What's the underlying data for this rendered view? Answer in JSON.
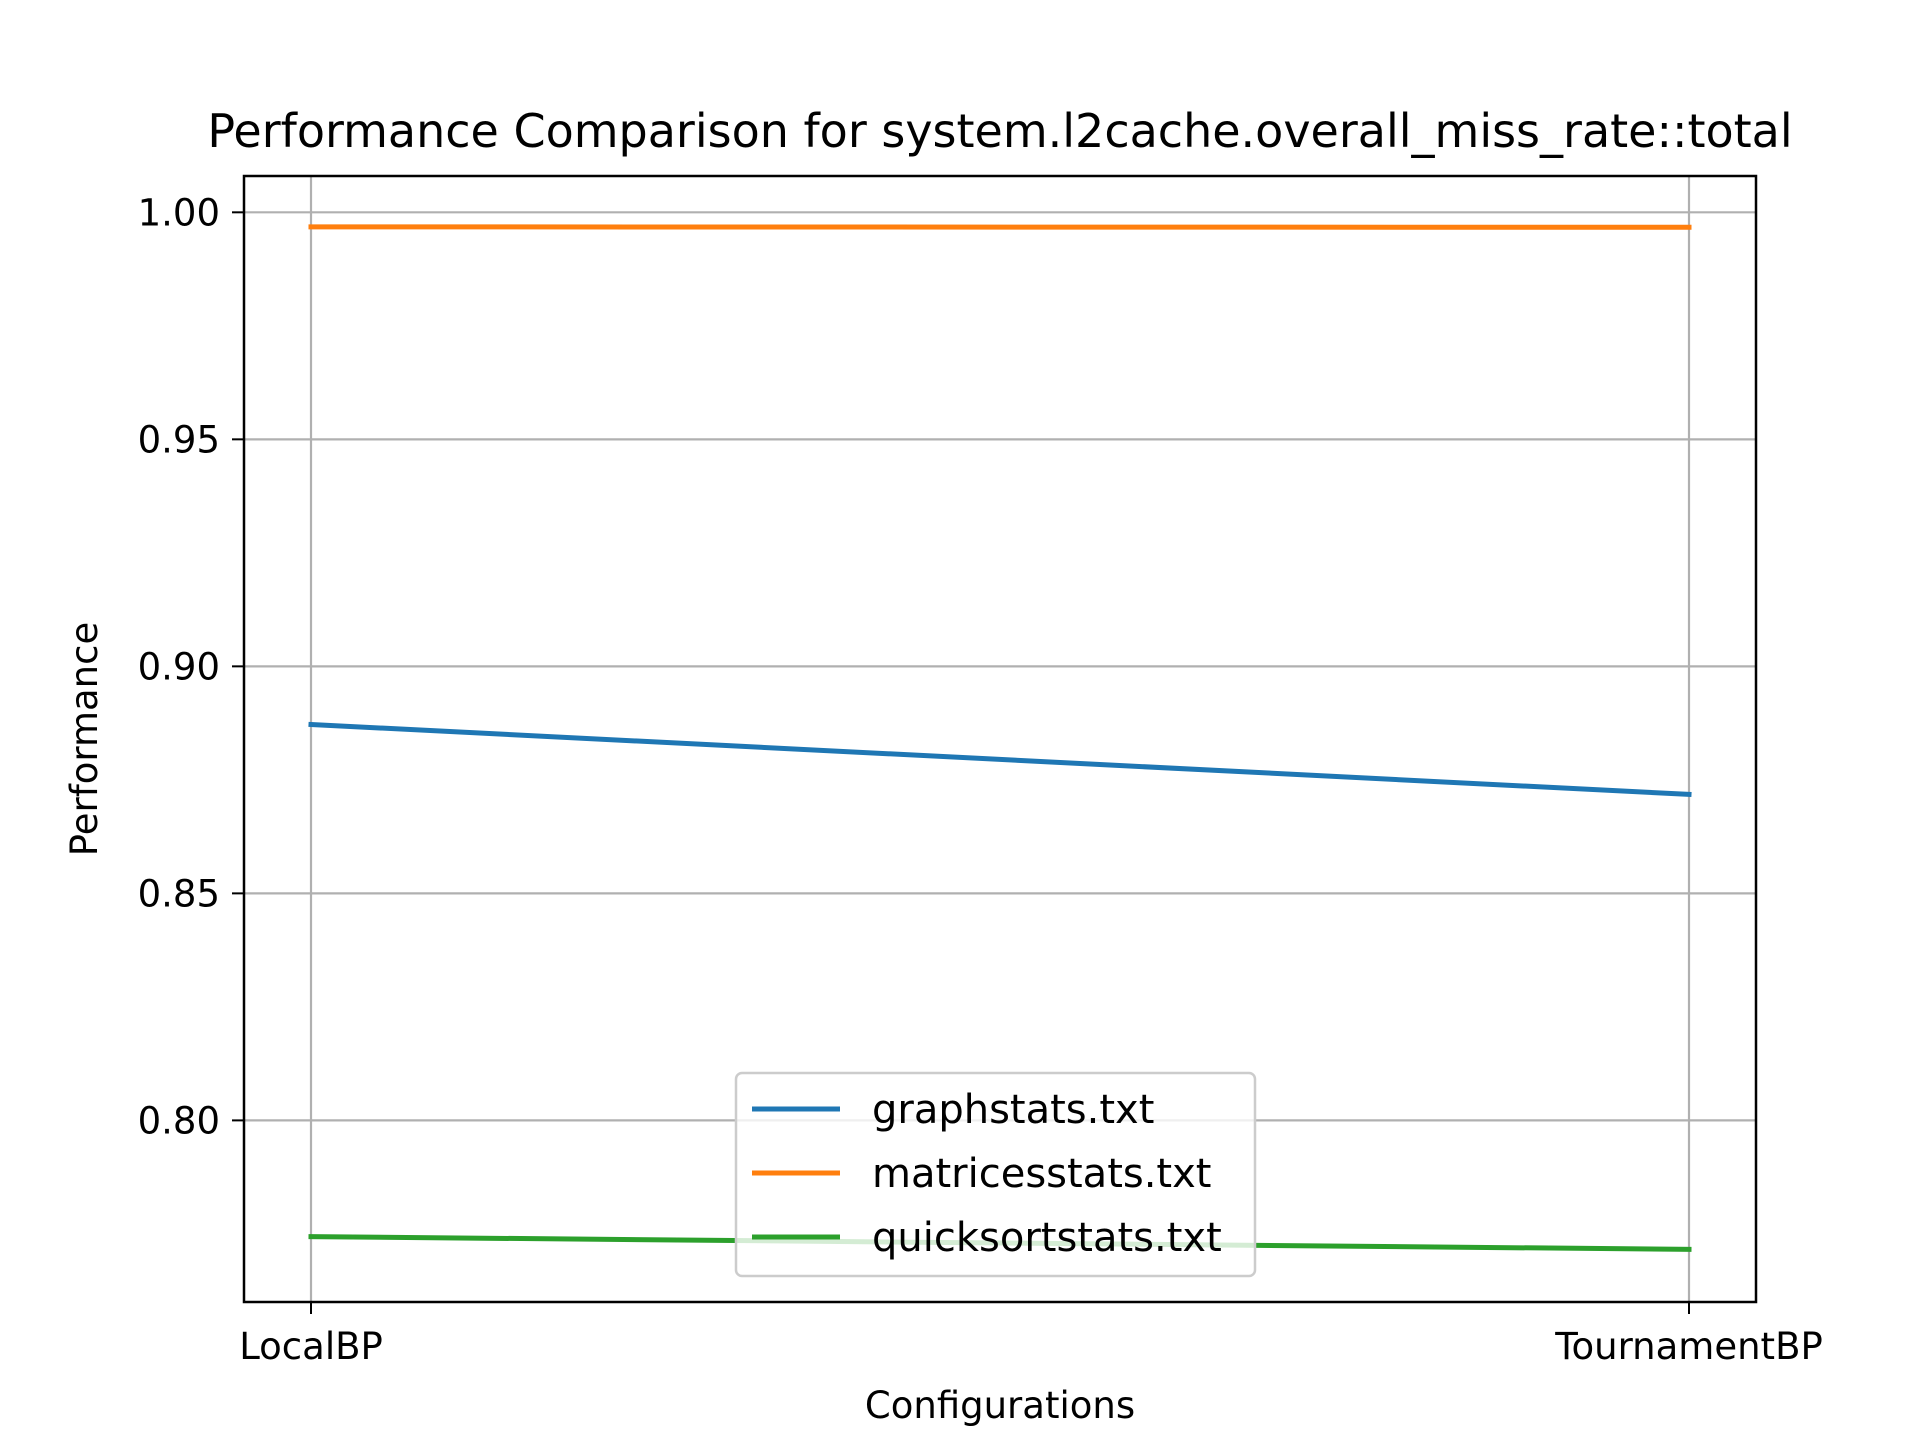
{
  "chart_data": {
    "type": "line",
    "title": "Performance Comparison for system.l2cache.overall_miss_rate::total",
    "xlabel": "Configurations",
    "ylabel": "Performance",
    "categories": [
      "LocalBP",
      "TournamentBP"
    ],
    "series": [
      {
        "name": "graphstats.txt",
        "values": [
          0.8872,
          0.8718
        ],
        "color": "#1f77b4"
      },
      {
        "name": "matricesstats.txt",
        "values": [
          0.9968,
          0.9967
        ],
        "color": "#ff7f0e"
      },
      {
        "name": "quicksortstats.txt",
        "values": [
          0.7744,
          0.7716
        ],
        "color": "#2ca02c"
      }
    ],
    "ylim": [
      0.76,
      1.008
    ],
    "yticks": [
      "0.80",
      "0.85",
      "0.90",
      "0.95",
      "1.00"
    ],
    "grid": true,
    "legend_position": "lower center"
  }
}
